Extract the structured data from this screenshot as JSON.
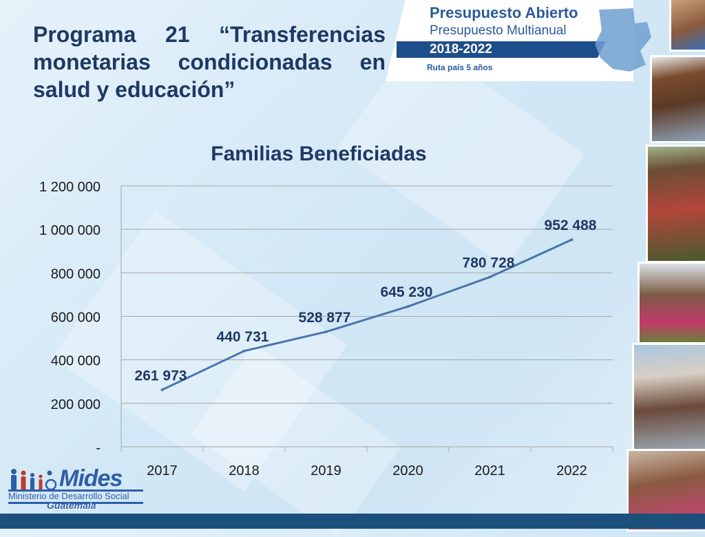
{
  "slide": {
    "title": "Programa 21 “Transferencias monetarias condicionadas en salud y educación”"
  },
  "header": {
    "brand_title": "Presupuesto Abierto",
    "brand_subtitle": "Presupuesto Multianual",
    "years": "2018-2022",
    "tagline": "Ruta país 5 años"
  },
  "logo": {
    "name": "Mides",
    "organization": "Ministerio de Desarrollo Social",
    "country": "Guatemala"
  },
  "photos": [
    "photo-boy",
    "photo-girl-sunglasses",
    "photo-farmer",
    "photo-children-standing",
    "photo-classroom",
    "photo-girls-smiling"
  ],
  "colors": {
    "title": "#1f3864",
    "series": "#4a74ad",
    "grid": "#a6a6a6",
    "labels": "#1f3864",
    "footer": "#1b4f7c"
  },
  "chart_data": {
    "type": "line",
    "title": "Familias Beneficiadas",
    "categories": [
      "2017",
      "2018",
      "2019",
      "2020",
      "2021",
      "2022"
    ],
    "series": [
      {
        "values": [
          261973,
          440731,
          528877,
          645230,
          780728,
          952488
        ],
        "data_labels": [
          "261 973",
          "440 731",
          "528 877",
          "645 230",
          "780 728",
          "952 488"
        ]
      }
    ],
    "ylim": [
      0,
      1200000
    ],
    "yticks": [
      0,
      200000,
      400000,
      600000,
      800000,
      1000000,
      1200000
    ],
    "ytick_labels": [
      "-",
      "200 000",
      "400 000",
      "600 000",
      "800 000",
      "1 000 000",
      "1 200 000"
    ],
    "xlabel": "",
    "ylabel": "",
    "grid": true,
    "legend": "none"
  }
}
